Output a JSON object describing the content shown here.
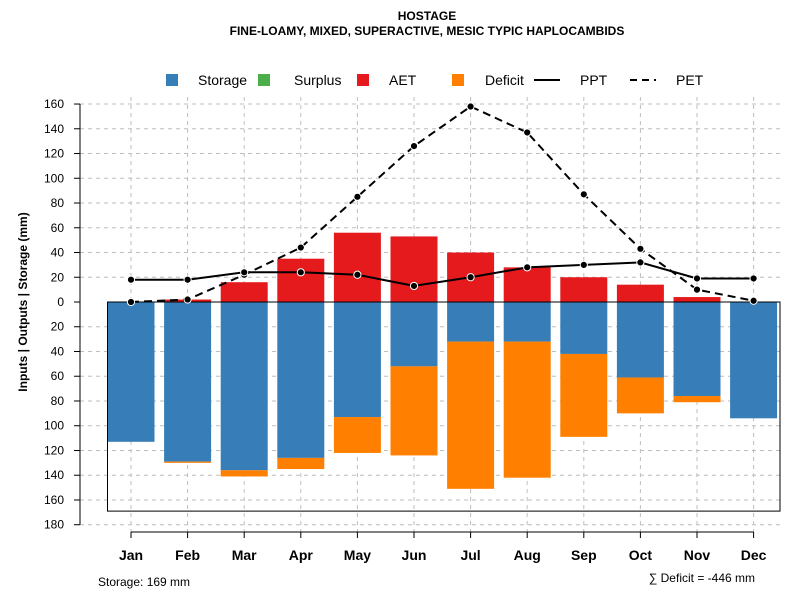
{
  "chart_data": {
    "type": "bar",
    "title": "HOSTAGE",
    "subtitle": "FINE-LOAMY, MIXED, SUPERACTIVE, MESIC TYPIC HAPLOCAMBIDS",
    "ylabel": "Inputs | Outputs | Storage    (mm)",
    "xlabel": "",
    "categories": [
      "Jan",
      "Feb",
      "Mar",
      "Apr",
      "May",
      "Jun",
      "Jul",
      "Aug",
      "Sep",
      "Oct",
      "Nov",
      "Dec"
    ],
    "ylim": [
      -180,
      160
    ],
    "yticks": [
      160,
      140,
      120,
      100,
      80,
      60,
      40,
      20,
      0,
      -20,
      -40,
      -60,
      -80,
      -100,
      -120,
      -140,
      -160,
      -180
    ],
    "ytick_labels": [
      "160",
      "140",
      "120",
      "100",
      "80",
      "60",
      "40",
      "20",
      "0",
      "20",
      "40",
      "60",
      "80",
      "100",
      "120",
      "140",
      "160",
      "180"
    ],
    "grid": true,
    "legend_position": "top",
    "legend": [
      {
        "label": "Storage",
        "kind": "box",
        "color": "#377EB8"
      },
      {
        "label": "Surplus",
        "kind": "box",
        "color": "#4DAF4A"
      },
      {
        "label": "AET",
        "kind": "box",
        "color": "#E41A1C"
      },
      {
        "label": "Deficit",
        "kind": "box",
        "color": "#FF7F00"
      },
      {
        "label": "PPT",
        "kind": "line-solid",
        "color": "#000000"
      },
      {
        "label": "PET",
        "kind": "line-dashed",
        "color": "#000000"
      }
    ],
    "series": [
      {
        "name": "AET",
        "color": "#E41A1C",
        "values": [
          0,
          2,
          16,
          35,
          56,
          53,
          40,
          28,
          20,
          14,
          4,
          0
        ]
      },
      {
        "name": "Storage",
        "color": "#377EB8",
        "values": [
          113,
          129,
          136,
          126,
          93,
          52,
          32,
          32,
          42,
          61,
          76,
          94
        ]
      },
      {
        "name": "Deficit",
        "color": "#FF7F00",
        "values": [
          0,
          1,
          5,
          9,
          29,
          72,
          119,
          110,
          67,
          29,
          5,
          0
        ]
      },
      {
        "name": "Surplus",
        "color": "#4DAF4A",
        "values": [
          0,
          0,
          0,
          0,
          0,
          0,
          0,
          0,
          0,
          0,
          0,
          0
        ]
      },
      {
        "name": "PPT",
        "color": "#000000",
        "values": [
          18,
          18,
          24,
          24,
          22,
          13,
          20,
          28,
          30,
          32,
          19,
          19
        ]
      },
      {
        "name": "PET",
        "color": "#000000",
        "values": [
          0,
          2,
          22,
          44,
          85,
          126,
          158,
          137,
          87,
          43,
          10,
          1
        ]
      }
    ],
    "storage_box": 169,
    "annotations": {
      "storage": "Storage: 169 mm",
      "deficit": "∑ Deficit = -446 mm"
    }
  }
}
